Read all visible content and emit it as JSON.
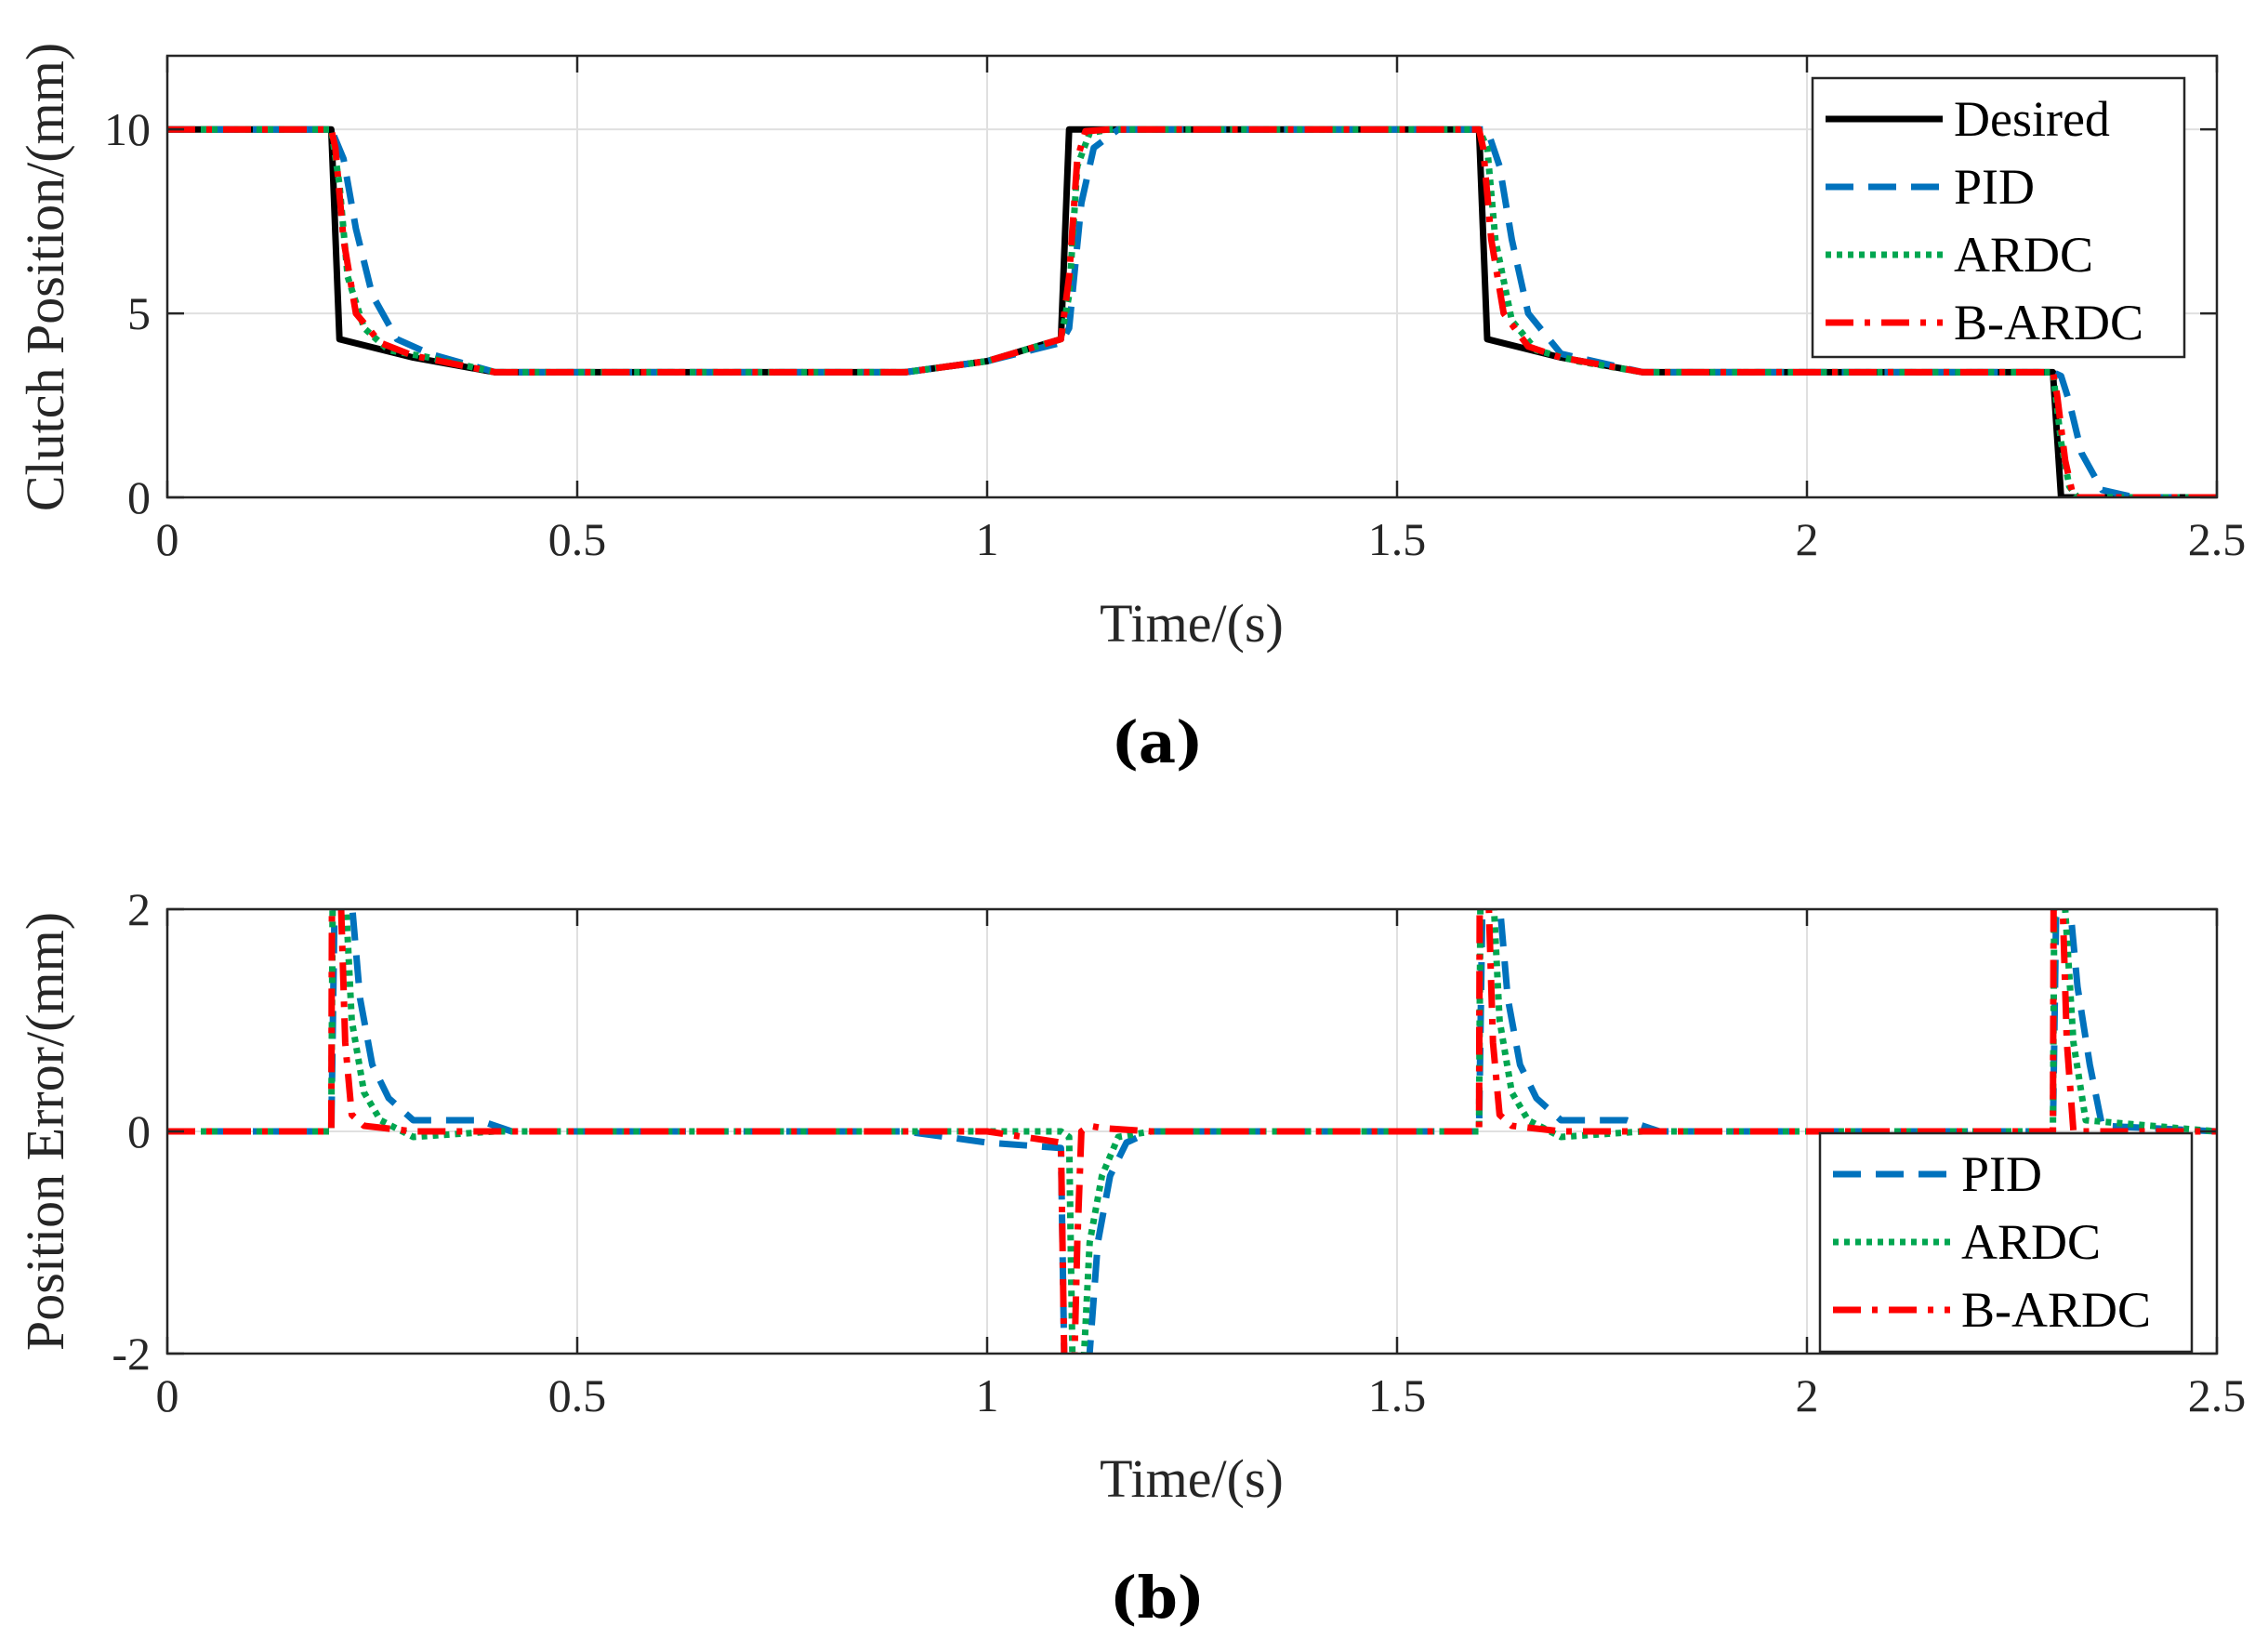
{
  "chart_data": [
    {
      "type": "line",
      "caption": "(a)",
      "xlabel": "Time/(s)",
      "ylabel": "Clutch Position/(mm)",
      "xlim": [
        0,
        2.5
      ],
      "ylim": [
        0,
        12
      ],
      "xticks": [
        0,
        0.5,
        1,
        1.5,
        2,
        2.5
      ],
      "xtick_labels": [
        "0",
        "0.5",
        "1",
        "1.5",
        "2",
        "2.5"
      ],
      "yticks": [
        0,
        5,
        10
      ],
      "ytick_labels": [
        "0",
        "5",
        "10"
      ],
      "grid": true,
      "legend": "top-right",
      "series": [
        {
          "name": "Desired",
          "color": "#000000",
          "style": "solid",
          "x": [
            0,
            0.2,
            0.21,
            0.3,
            0.4,
            0.5,
            0.9,
            1.0,
            1.09,
            1.1,
            1.6,
            1.61,
            1.7,
            1.8,
            1.9,
            2.3,
            2.31,
            2.5
          ],
          "y": [
            10,
            10,
            4.3,
            3.8,
            3.4,
            3.4,
            3.4,
            3.7,
            4.3,
            10,
            10,
            4.3,
            3.8,
            3.4,
            3.4,
            3.4,
            0,
            0
          ]
        },
        {
          "name": "PID",
          "color": "#0072BD",
          "style": "dashed",
          "x": [
            0,
            0.2,
            0.215,
            0.23,
            0.25,
            0.28,
            0.32,
            0.4,
            0.5,
            0.9,
            1.0,
            1.09,
            1.1,
            1.115,
            1.13,
            1.16,
            1.2,
            1.6,
            1.61,
            1.625,
            1.64,
            1.66,
            1.7,
            1.8,
            1.9,
            2.3,
            2.31,
            2.32,
            2.335,
            2.36,
            2.4,
            2.5
          ],
          "y": [
            10,
            10,
            9.2,
            7.3,
            5.5,
            4.3,
            3.9,
            3.4,
            3.4,
            3.4,
            3.7,
            4.2,
            4.6,
            8.0,
            9.5,
            10,
            10,
            10,
            10,
            9.0,
            7.0,
            5.0,
            3.9,
            3.4,
            3.4,
            3.4,
            3.3,
            2.6,
            1.2,
            0.2,
            0,
            0
          ]
        },
        {
          "name": "ARDC",
          "color": "#00A650",
          "style": "dotted",
          "x": [
            0,
            0.2,
            0.21,
            0.22,
            0.24,
            0.27,
            0.32,
            0.4,
            0.5,
            0.9,
            1.0,
            1.09,
            1.1,
            1.11,
            1.125,
            1.15,
            1.2,
            1.6,
            1.61,
            1.62,
            1.64,
            1.67,
            1.72,
            1.8,
            1.9,
            2.3,
            2.31,
            2.32,
            2.33,
            2.5
          ],
          "y": [
            10,
            10,
            8.5,
            6.0,
            4.6,
            4.0,
            3.8,
            3.4,
            3.4,
            3.4,
            3.7,
            4.3,
            5.5,
            9.0,
            9.9,
            10,
            10,
            10,
            9.5,
            7.0,
            4.8,
            4.0,
            3.7,
            3.4,
            3.4,
            3.4,
            1.5,
            0.3,
            0,
            0
          ]
        },
        {
          "name": "B-ARDC",
          "color": "#FF0000",
          "style": "dashdot",
          "x": [
            0,
            0.2,
            0.205,
            0.215,
            0.23,
            0.26,
            0.3,
            0.4,
            0.5,
            0.9,
            1.0,
            1.09,
            1.1,
            1.11,
            1.12,
            1.15,
            1.2,
            1.6,
            1.605,
            1.615,
            1.63,
            1.66,
            1.7,
            1.8,
            1.9,
            2.3,
            2.305,
            2.315,
            2.325,
            2.5
          ],
          "y": [
            10,
            10,
            9.5,
            7.0,
            5.0,
            4.2,
            3.85,
            3.4,
            3.4,
            3.4,
            3.7,
            4.3,
            6.0,
            9.2,
            9.95,
            10,
            10,
            10,
            9.5,
            7.0,
            5.0,
            4.1,
            3.8,
            3.4,
            3.4,
            3.4,
            2.8,
            1.0,
            0,
            0
          ]
        }
      ]
    },
    {
      "type": "line",
      "caption": "(b)",
      "xlabel": "Time/(s)",
      "ylabel": "Position Error/(mm)",
      "xlim": [
        0,
        2.5
      ],
      "ylim": [
        -2,
        2
      ],
      "xticks": [
        0,
        0.5,
        1,
        1.5,
        2,
        2.5
      ],
      "xtick_labels": [
        "0",
        "0.5",
        "1",
        "1.5",
        "2",
        "2.5"
      ],
      "yticks": [
        -2,
        0,
        2
      ],
      "ytick_labels": [
        "-2",
        "0",
        "2"
      ],
      "grid": true,
      "legend": "bottom-right",
      "series": [
        {
          "name": "PID",
          "color": "#0072BD",
          "style": "dashed",
          "x": [
            0,
            0.2,
            0.205,
            0.22,
            0.235,
            0.25,
            0.27,
            0.3,
            0.38,
            0.42,
            0.9,
            1.0,
            1.09,
            1.095,
            1.12,
            1.135,
            1.15,
            1.17,
            1.2,
            1.6,
            1.605,
            1.62,
            1.635,
            1.65,
            1.67,
            1.7,
            1.78,
            1.82,
            2.3,
            2.305,
            2.315,
            2.33,
            2.345,
            2.36,
            2.5
          ],
          "y": [
            0,
            0,
            2.5,
            2.5,
            1.2,
            0.6,
            0.3,
            0.1,
            0.1,
            0,
            0,
            -0.1,
            -0.15,
            -2.5,
            -2.5,
            -1.0,
            -0.4,
            -0.1,
            0,
            0,
            2.5,
            2.5,
            1.2,
            0.6,
            0.3,
            0.1,
            0.1,
            0,
            0,
            2.5,
            2.5,
            1.3,
            0.6,
            0.05,
            0
          ]
        },
        {
          "name": "ARDC",
          "color": "#00A650",
          "style": "dotted",
          "x": [
            0,
            0.2,
            0.202,
            0.215,
            0.225,
            0.24,
            0.26,
            0.3,
            0.4,
            0.9,
            1.0,
            1.09,
            1.1,
            1.105,
            1.115,
            1.125,
            1.14,
            1.16,
            1.2,
            1.6,
            1.602,
            1.615,
            1.625,
            1.64,
            1.66,
            1.7,
            1.8,
            2.3,
            2.302,
            2.315,
            2.325,
            2.34,
            2.5
          ],
          "y": [
            0,
            0,
            2.5,
            2.5,
            1.0,
            0.35,
            0.1,
            -0.05,
            0,
            0,
            0,
            0,
            -0.05,
            -2.5,
            -2.5,
            -1.0,
            -0.4,
            -0.05,
            0,
            0,
            2.5,
            2.5,
            1.0,
            0.35,
            0.1,
            -0.05,
            0,
            0,
            2.5,
            2.0,
            0.8,
            0.1,
            0
          ]
        },
        {
          "name": "B-ARDC",
          "color": "#FF0000",
          "style": "dashdot",
          "x": [
            0,
            0.2,
            0.201,
            0.21,
            0.217,
            0.225,
            0.24,
            0.3,
            0.4,
            0.9,
            1.0,
            1.09,
            1.095,
            1.105,
            1.11,
            1.115,
            1.125,
            1.14,
            1.2,
            1.6,
            1.601,
            1.61,
            1.617,
            1.625,
            1.64,
            1.7,
            1.8,
            2.3,
            2.301,
            2.31,
            2.317,
            2.325,
            2.5
          ],
          "y": [
            0,
            0,
            2.5,
            2.5,
            0.8,
            0.15,
            0.05,
            0,
            0,
            0,
            0,
            -0.1,
            -2.5,
            -2.5,
            -1.0,
            0,
            0.05,
            0.03,
            0,
            0,
            2.5,
            2.5,
            0.8,
            0.15,
            0.05,
            0,
            0,
            0,
            2.5,
            2.5,
            0.8,
            0,
            0
          ]
        }
      ]
    }
  ]
}
